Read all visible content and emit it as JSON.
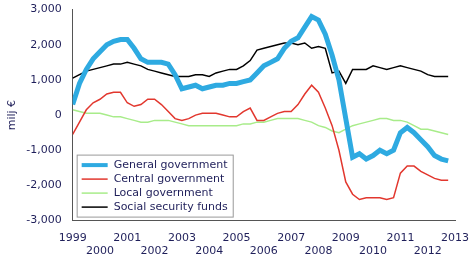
{
  "chart_data": {
    "type": "line",
    "y_label": "milj €",
    "x": [
      1999,
      1999.25,
      1999.5,
      1999.75,
      2000,
      2000.25,
      2000.5,
      2000.75,
      2001,
      2001.25,
      2001.5,
      2001.75,
      2002,
      2002.25,
      2002.5,
      2002.75,
      2003,
      2003.25,
      2003.5,
      2003.75,
      2004,
      2004.25,
      2004.5,
      2004.75,
      2005,
      2005.25,
      2005.5,
      2005.75,
      2006,
      2006.25,
      2006.5,
      2006.75,
      2007,
      2007.25,
      2007.5,
      2007.75,
      2008,
      2008.25,
      2008.5,
      2008.75,
      2009,
      2009.25,
      2009.5,
      2009.75,
      2010,
      2010.25,
      2010.5,
      2010.75,
      2011,
      2011.25,
      2011.5,
      2011.75,
      2012,
      2012.25,
      2012.5,
      2012.75
    ],
    "series": [
      {
        "name": "General government",
        "color": "#2eaae1",
        "values": [
          300,
          900,
          1300,
          1600,
          1800,
          2000,
          2100,
          2150,
          2150,
          1900,
          1600,
          1500,
          1500,
          1500,
          1450,
          1150,
          750,
          800,
          850,
          750,
          800,
          850,
          850,
          900,
          900,
          950,
          1000,
          1200,
          1400,
          1500,
          1600,
          1900,
          2100,
          2200,
          2500,
          2800,
          2700,
          2300,
          1700,
          1000,
          -100,
          -1200,
          -1100,
          -1250,
          -1150,
          -1000,
          -1100,
          -1000,
          -500,
          -350,
          -500,
          -700,
          -900,
          -1150,
          -1250,
          -1300
        ]
      },
      {
        "name": "Central government",
        "color": "#e2372e",
        "values": [
          -550,
          -200,
          150,
          350,
          450,
          600,
          650,
          650,
          350,
          250,
          300,
          450,
          450,
          300,
          100,
          -100,
          -150,
          -100,
          0,
          50,
          50,
          50,
          0,
          -50,
          -50,
          100,
          200,
          -150,
          -150,
          -50,
          50,
          100,
          100,
          300,
          600,
          850,
          650,
          200,
          -300,
          -1000,
          -1900,
          -2250,
          -2400,
          -2350,
          -2350,
          -2350,
          -2400,
          -2350,
          -1650,
          -1450,
          -1450,
          -1600,
          -1700,
          -1800,
          -1850,
          -1850
        ]
      },
      {
        "name": "Local government",
        "color": "#a8ec8a",
        "values": [
          150,
          100,
          50,
          50,
          50,
          0,
          -50,
          -50,
          -100,
          -150,
          -200,
          -200,
          -150,
          -150,
          -150,
          -200,
          -250,
          -300,
          -300,
          -300,
          -300,
          -300,
          -300,
          -300,
          -300,
          -250,
          -250,
          -200,
          -200,
          -150,
          -100,
          -100,
          -100,
          -100,
          -150,
          -200,
          -300,
          -350,
          -450,
          -500,
          -400,
          -300,
          -250,
          -200,
          -150,
          -100,
          -100,
          -150,
          -150,
          -200,
          -300,
          -400,
          -400,
          -450,
          -500,
          -550
        ]
      },
      {
        "name": "Social security funds",
        "color": "#000000",
        "values": [
          1050,
          1150,
          1250,
          1300,
          1350,
          1400,
          1450,
          1450,
          1500,
          1450,
          1400,
          1300,
          1250,
          1200,
          1150,
          1100,
          1100,
          1100,
          1150,
          1150,
          1100,
          1200,
          1250,
          1300,
          1300,
          1400,
          1550,
          1850,
          1900,
          1950,
          2000,
          2050,
          2050,
          2000,
          2050,
          1900,
          1950,
          1900,
          1200,
          1250,
          900,
          1300,
          1300,
          1300,
          1400,
          1350,
          1300,
          1350,
          1400,
          1350,
          1300,
          1250,
          1150,
          1100,
          1100,
          1100
        ]
      }
    ],
    "xlim": [
      1999,
      2013
    ],
    "xticks": [
      1999,
      2000,
      2001,
      2002,
      2003,
      2004,
      2005,
      2006,
      2007,
      2008,
      2009,
      2010,
      2011,
      2012,
      2013
    ],
    "ylim": [
      -3000,
      3000
    ],
    "yticks": [
      -3000,
      -2000,
      -1000,
      0,
      1000,
      2000,
      3000
    ],
    "grid": false,
    "legend": "lower left"
  }
}
